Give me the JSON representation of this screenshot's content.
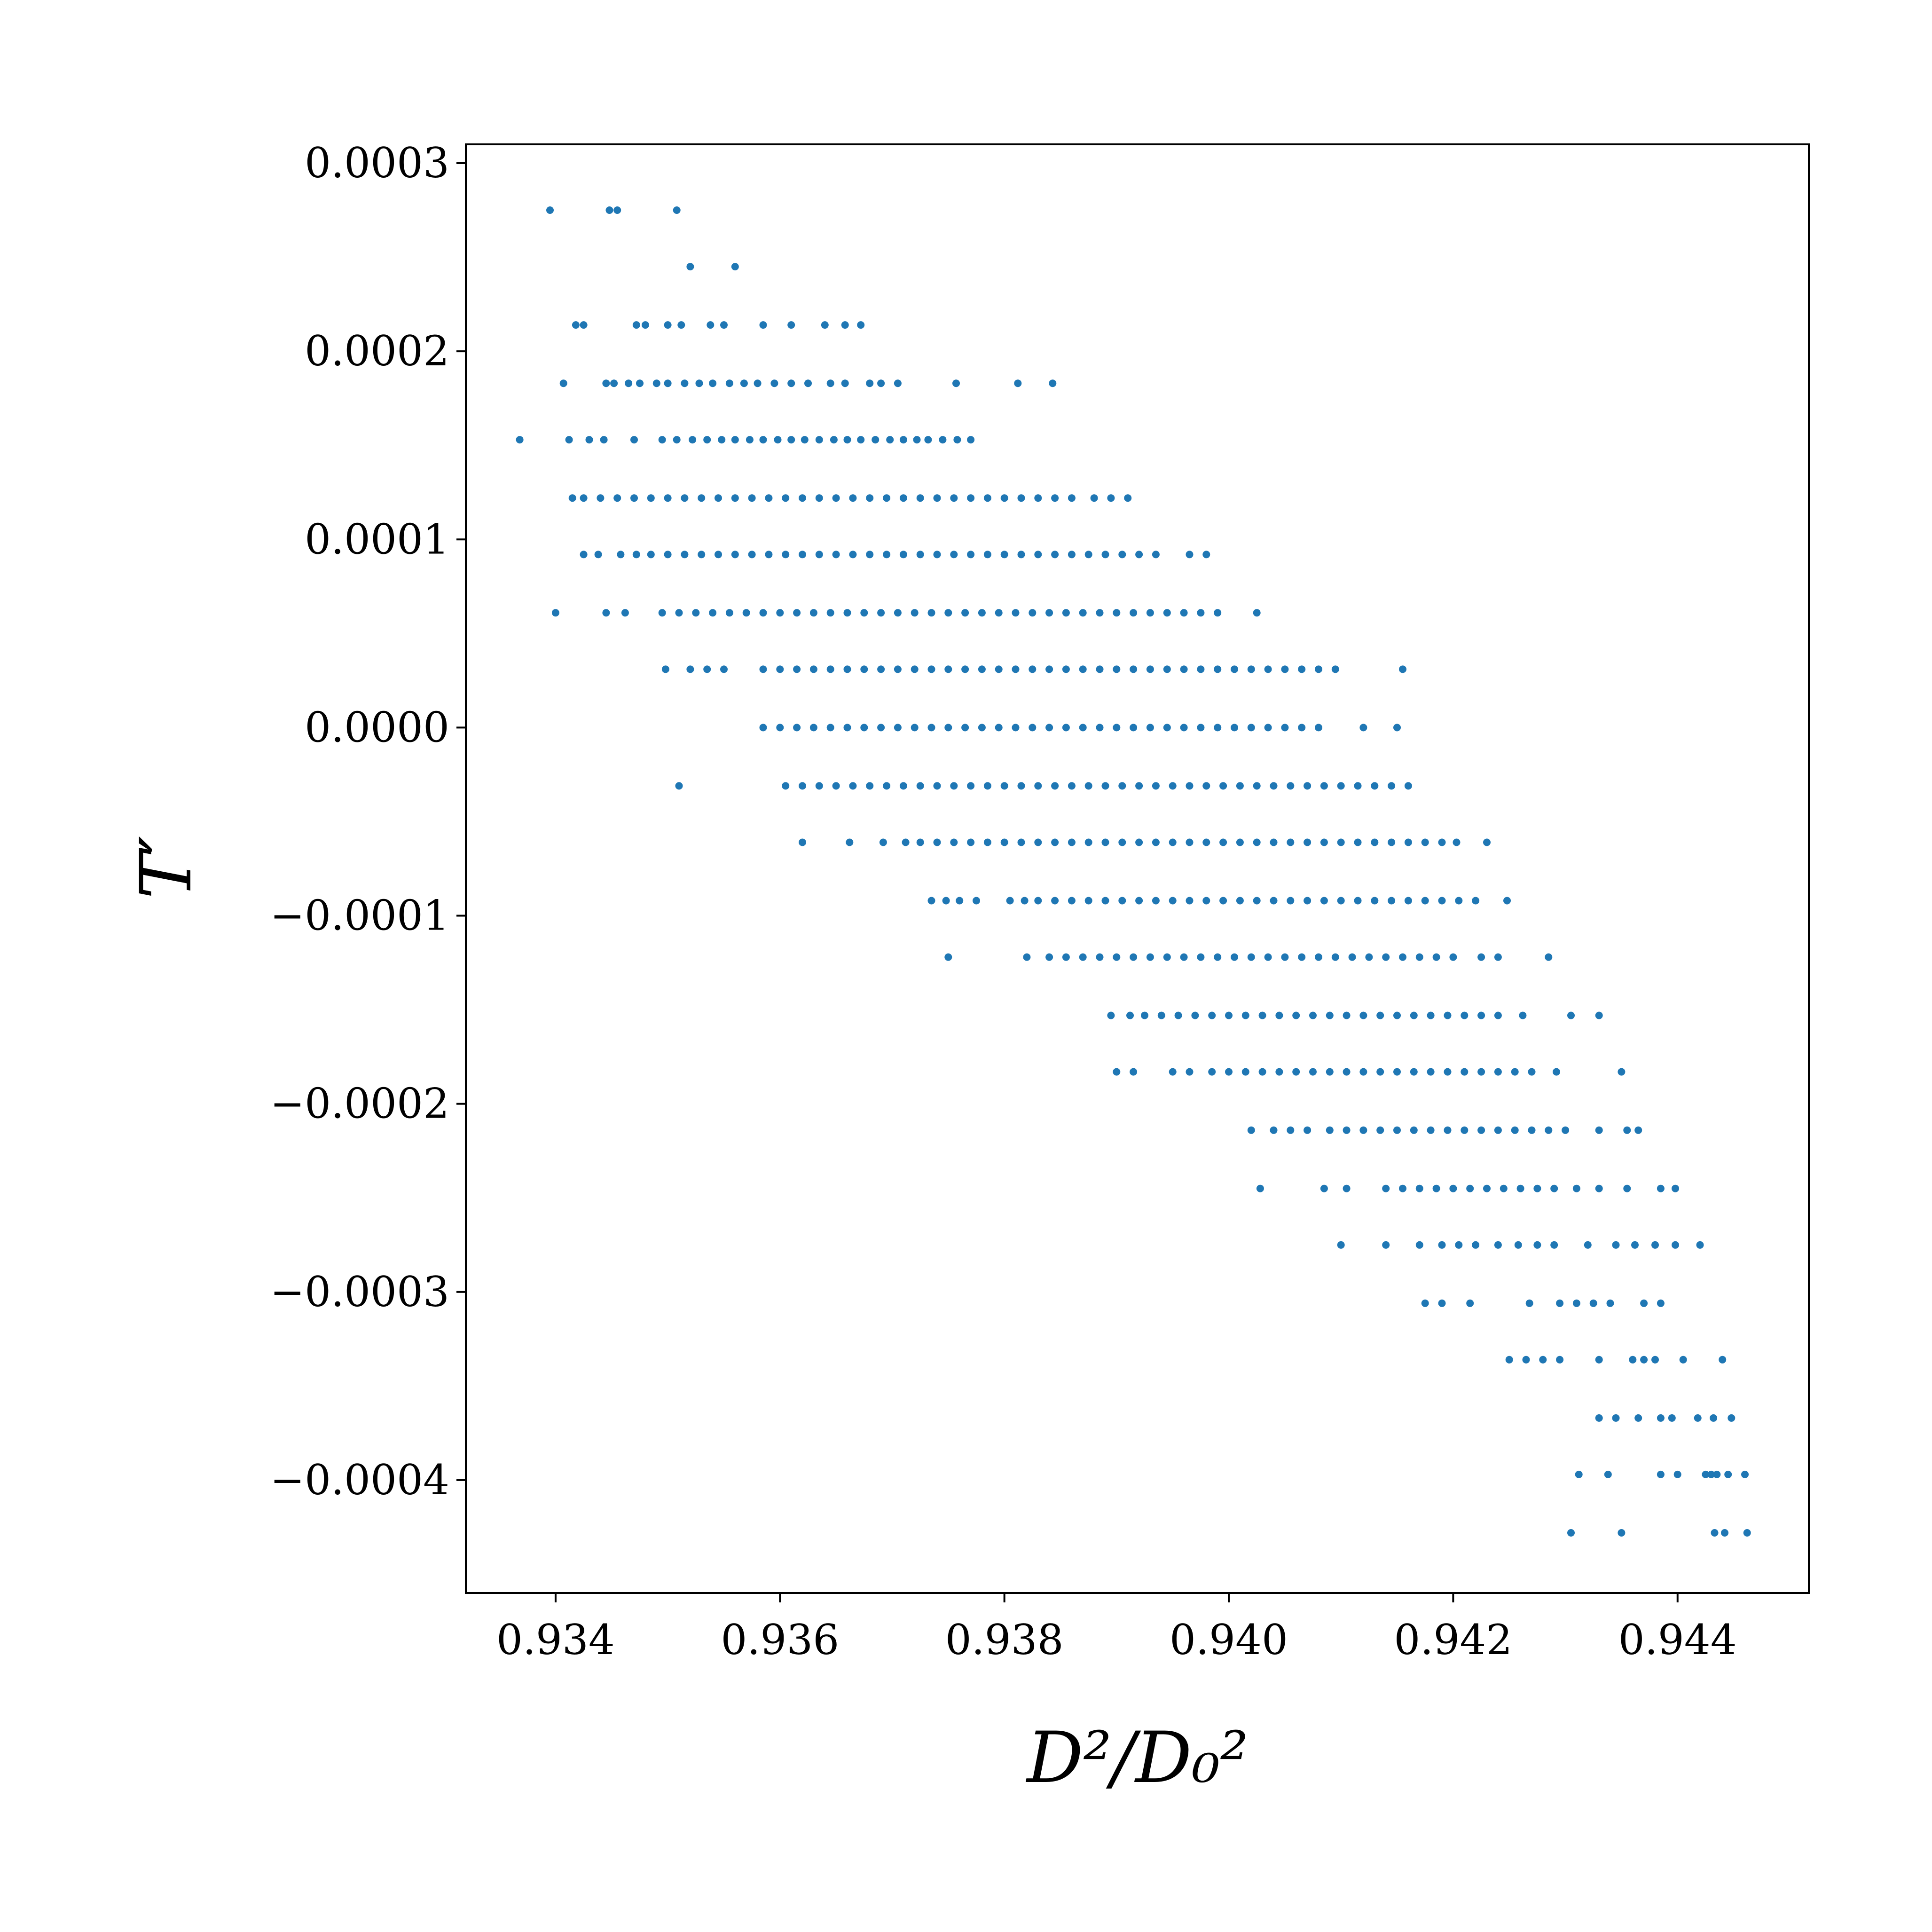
{
  "chart_data": {
    "type": "scatter",
    "title": "",
    "xlabel": "D²/D₀²",
    "ylabel": "T′",
    "xlim": [
      0.9332,
      0.94517
    ],
    "ylim": [
      -0.00046,
      0.00031
    ],
    "x_ticks": [
      0.934,
      0.936,
      0.938,
      0.94,
      0.942,
      0.944
    ],
    "x_tick_labels": [
      "0.934",
      "0.936",
      "0.938",
      "0.940",
      "0.942",
      "0.944"
    ],
    "y_ticks": [
      0.0003,
      0.0002,
      0.0001,
      0.0,
      -0.0001,
      -0.0002,
      -0.0003,
      -0.0004
    ],
    "y_tick_labels": [
      "0.0003",
      "0.0002",
      "0.0001",
      "0.0000",
      "−0.0001",
      "−0.0002",
      "−0.0003",
      "−0.0004"
    ],
    "grid": false,
    "legend": "none",
    "colors": {
      "points": "#1f77b4",
      "axes": "#000000",
      "background": "#ffffff"
    },
    "series": [
      {
        "name": "",
        "rows": [
          {
            "y": 0.000275,
            "x": [
              0.93395,
              0.93448,
              0.93455,
              0.93508
            ]
          },
          {
            "y": 0.000245,
            "x": [
              0.9352,
              0.9356
            ]
          },
          {
            "y": 0.000214,
            "x": [
              0.93418,
              0.93425,
              0.93472,
              0.9348,
              0.935,
              0.93512,
              0.93538,
              0.9355,
              0.93585,
              0.9361,
              0.9364,
              0.93658,
              0.93672
            ]
          },
          {
            "y": 0.000183,
            "x": [
              0.93407,
              0.93445,
              0.93452,
              0.93465,
              0.93475,
              0.9349,
              0.935,
              0.93515,
              0.93528,
              0.9354,
              0.93555,
              0.93568,
              0.9358,
              0.93595,
              0.9361,
              0.93625,
              0.93645,
              0.93658,
              0.9368,
              0.9369,
              0.93705,
              0.93757,
              0.93812,
              0.93843
            ]
          },
          {
            "y": 0.000153,
            "x": [
              0.93368,
              0.93412,
              0.9343,
              0.93443,
              0.9347,
              0.93495,
              0.93508,
              0.93522,
              0.93535,
              0.93548,
              0.9356,
              0.93573,
              0.93585,
              0.93598,
              0.9361,
              0.93622,
              0.93635,
              0.93648,
              0.9366,
              0.93672,
              0.93685,
              0.93698,
              0.9371,
              0.93722,
              0.93732,
              0.93745,
              0.93758,
              0.9377
            ]
          },
          {
            "y": 0.000122,
            "x": [
              0.93415,
              0.93425,
              0.9344,
              0.93455,
              0.9347,
              0.93485,
              0.935,
              0.93515,
              0.9353,
              0.93545,
              0.9356,
              0.93575,
              0.9359,
              0.93605,
              0.9362,
              0.93635,
              0.9365,
              0.93665,
              0.9368,
              0.93695,
              0.9371,
              0.93725,
              0.9374,
              0.93755,
              0.9377,
              0.93785,
              0.938,
              0.93815,
              0.9383,
              0.93845,
              0.9386,
              0.9388,
              0.93895,
              0.9391
            ]
          },
          {
            "y": 9.2e-05,
            "x": [
              0.93425,
              0.93438,
              0.93458,
              0.93472,
              0.93485,
              0.935,
              0.93515,
              0.9353,
              0.93545,
              0.9356,
              0.93575,
              0.9359,
              0.93605,
              0.9362,
              0.93635,
              0.9365,
              0.93665,
              0.9368,
              0.93695,
              0.9371,
              0.93725,
              0.9374,
              0.93755,
              0.9377,
              0.93785,
              0.938,
              0.93815,
              0.9383,
              0.93845,
              0.9386,
              0.93875,
              0.9389,
              0.93905,
              0.9392,
              0.93935,
              0.93965,
              0.9398
            ]
          },
          {
            "y": 6.1e-05,
            "x": [
              0.934,
              0.93445,
              0.93462,
              0.93495,
              0.9351,
              0.93525,
              0.9354,
              0.93555,
              0.9357,
              0.93585,
              0.936,
              0.93615,
              0.9363,
              0.93645,
              0.9366,
              0.93675,
              0.9369,
              0.93705,
              0.9372,
              0.93735,
              0.9375,
              0.93765,
              0.9378,
              0.93795,
              0.9381,
              0.93825,
              0.9384,
              0.93855,
              0.9387,
              0.93885,
              0.939,
              0.93915,
              0.9393,
              0.93945,
              0.9396,
              0.93975,
              0.9399,
              0.94025
            ]
          },
          {
            "y": 3.1e-05,
            "x": [
              0.93498,
              0.9352,
              0.93535,
              0.9355,
              0.93585,
              0.936,
              0.93615,
              0.9363,
              0.93645,
              0.9366,
              0.93675,
              0.9369,
              0.93705,
              0.9372,
              0.93735,
              0.9375,
              0.93765,
              0.9378,
              0.93795,
              0.9381,
              0.93825,
              0.9384,
              0.93855,
              0.9387,
              0.93885,
              0.939,
              0.93915,
              0.9393,
              0.93945,
              0.9396,
              0.93975,
              0.9399,
              0.94005,
              0.9402,
              0.94035,
              0.9405,
              0.94065,
              0.9408,
              0.94095,
              0.94155
            ]
          },
          {
            "y": 0.0,
            "x": [
              0.93585,
              0.936,
              0.93615,
              0.9363,
              0.93645,
              0.9366,
              0.93675,
              0.9369,
              0.93705,
              0.9372,
              0.93735,
              0.9375,
              0.93765,
              0.9378,
              0.93795,
              0.9381,
              0.93825,
              0.9384,
              0.93855,
              0.9387,
              0.93885,
              0.939,
              0.93915,
              0.9393,
              0.93945,
              0.9396,
              0.93975,
              0.9399,
              0.94005,
              0.9402,
              0.94035,
              0.9405,
              0.94065,
              0.9408,
              0.9412,
              0.9415
            ]
          },
          {
            "y": -3.1e-05,
            "x": [
              0.9351,
              0.93605,
              0.9362,
              0.93635,
              0.9365,
              0.93665,
              0.9368,
              0.93695,
              0.9371,
              0.93725,
              0.9374,
              0.93755,
              0.9377,
              0.93785,
              0.938,
              0.93815,
              0.9383,
              0.93845,
              0.9386,
              0.93875,
              0.9389,
              0.93905,
              0.9392,
              0.93935,
              0.9395,
              0.93965,
              0.9398,
              0.93995,
              0.9401,
              0.94025,
              0.9404,
              0.94055,
              0.9407,
              0.94085,
              0.941,
              0.94115,
              0.9413,
              0.94145,
              0.9416
            ]
          },
          {
            "y": -6.1e-05,
            "x": [
              0.9362,
              0.93662,
              0.93692,
              0.93712,
              0.93725,
              0.9374,
              0.93755,
              0.9377,
              0.93785,
              0.938,
              0.93815,
              0.9383,
              0.93845,
              0.9386,
              0.93875,
              0.9389,
              0.93905,
              0.9392,
              0.93935,
              0.9395,
              0.93965,
              0.9398,
              0.93995,
              0.9401,
              0.94025,
              0.9404,
              0.94055,
              0.9407,
              0.94085,
              0.941,
              0.94115,
              0.9413,
              0.94145,
              0.9416,
              0.94175,
              0.9419,
              0.94203,
              0.9423
            ]
          },
          {
            "y": -9.2e-05,
            "x": [
              0.93735,
              0.93748,
              0.9376,
              0.93775,
              0.93805,
              0.93818,
              0.9383,
              0.93845,
              0.9386,
              0.93875,
              0.9389,
              0.93905,
              0.9392,
              0.93935,
              0.9395,
              0.93965,
              0.9398,
              0.93995,
              0.9401,
              0.94025,
              0.9404,
              0.94055,
              0.9407,
              0.94085,
              0.941,
              0.94115,
              0.9413,
              0.94145,
              0.9416,
              0.94175,
              0.9419,
              0.94205,
              0.9422,
              0.94248
            ]
          },
          {
            "y": -0.000122,
            "x": [
              0.9375,
              0.9382,
              0.9384,
              0.93855,
              0.9387,
              0.93885,
              0.939,
              0.93915,
              0.9393,
              0.93945,
              0.9396,
              0.93975,
              0.9399,
              0.94005,
              0.9402,
              0.94035,
              0.9405,
              0.94065,
              0.9408,
              0.94095,
              0.9411,
              0.94125,
              0.9414,
              0.94155,
              0.9417,
              0.94185,
              0.942,
              0.94225,
              0.9424,
              0.94285
            ]
          },
          {
            "y": -0.000153,
            "x": [
              0.93895,
              0.93912,
              0.93925,
              0.9394,
              0.93955,
              0.9397,
              0.93985,
              0.94,
              0.94015,
              0.9403,
              0.94045,
              0.9406,
              0.94075,
              0.9409,
              0.94105,
              0.9412,
              0.94135,
              0.9415,
              0.94165,
              0.9418,
              0.94195,
              0.9421,
              0.94225,
              0.9424,
              0.94262,
              0.94305,
              0.9433
            ]
          },
          {
            "y": -0.000183,
            "x": [
              0.939,
              0.93915,
              0.9395,
              0.93965,
              0.93985,
              0.94,
              0.94015,
              0.9403,
              0.94045,
              0.9406,
              0.94075,
              0.9409,
              0.94105,
              0.9412,
              0.94135,
              0.9415,
              0.94165,
              0.9418,
              0.94195,
              0.9421,
              0.94225,
              0.9424,
              0.94255,
              0.9427,
              0.94292,
              0.9435
            ]
          },
          {
            "y": -0.000214,
            "x": [
              0.9402,
              0.9404,
              0.94055,
              0.9407,
              0.9409,
              0.94105,
              0.9412,
              0.94135,
              0.9415,
              0.94165,
              0.9418,
              0.94195,
              0.9421,
              0.94225,
              0.9424,
              0.94255,
              0.9427,
              0.94285,
              0.943,
              0.9433,
              0.94355,
              0.94365
            ]
          },
          {
            "y": -0.000245,
            "x": [
              0.94028,
              0.94085,
              0.94105,
              0.9414,
              0.94155,
              0.9417,
              0.94185,
              0.942,
              0.94215,
              0.9423,
              0.94245,
              0.9426,
              0.94275,
              0.9429,
              0.9431,
              0.9433,
              0.94355,
              0.94385,
              0.94398
            ]
          },
          {
            "y": -0.000275,
            "x": [
              0.941,
              0.9414,
              0.9417,
              0.9419,
              0.94205,
              0.9422,
              0.9424,
              0.94258,
              0.94275,
              0.9429,
              0.9432,
              0.94345,
              0.94362,
              0.9438,
              0.94398,
              0.9442
            ]
          },
          {
            "y": -0.000306,
            "x": [
              0.94175,
              0.9419,
              0.94215,
              0.94268,
              0.94295,
              0.9431,
              0.94325,
              0.9434,
              0.9437,
              0.94385
            ]
          },
          {
            "y": -0.000336,
            "x": [
              0.9425,
              0.94265,
              0.9428,
              0.94295,
              0.9433,
              0.9436,
              0.9437,
              0.9438,
              0.94405,
              0.9444
            ]
          },
          {
            "y": -0.000367,
            "x": [
              0.9433,
              0.94345,
              0.94365,
              0.94385,
              0.94395,
              0.94418,
              0.94432,
              0.94448
            ]
          },
          {
            "y": -0.000397,
            "x": [
              0.94312,
              0.94338,
              0.94385,
              0.944,
              0.94425,
              0.9443,
              0.94435,
              0.94445,
              0.9446
            ]
          },
          {
            "y": -0.000428,
            "x": [
              0.94305,
              0.9435,
              0.94433,
              0.94442,
              0.94462
            ]
          }
        ]
      }
    ]
  }
}
